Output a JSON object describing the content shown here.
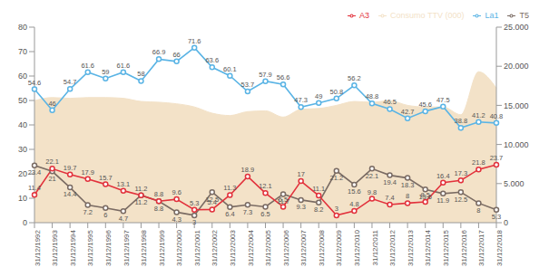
{
  "chart_data": {
    "type": "line",
    "categories": [
      "31/12/1992",
      "31/12/1993",
      "31/12/1994",
      "31/12/1995",
      "31/12/1996",
      "31/12/1997",
      "31/12/1998",
      "31/12/1999",
      "31/12/2000",
      "31/12/2001",
      "31/12/2002",
      "31/12/2003",
      "31/12/2004",
      "31/12/2005",
      "31/12/2006",
      "31/12/2007",
      "31/12/2008",
      "31/12/2009",
      "31/12/2010",
      "31/12/2011",
      "31/12/2012",
      "31/12/2013",
      "31/12/2014",
      "31/12/2015",
      "31/12/2016",
      "31/12/2017",
      "31/12/2018"
    ],
    "series": [
      {
        "name": "Consumo TTV (000)",
        "type": "area",
        "axis": "y2",
        "color": "#f3e2c8",
        "values": [
          15600,
          16000,
          15900,
          16000,
          16000,
          15900,
          15500,
          15400,
          15200,
          14800,
          14000,
          13700,
          14200,
          14300,
          13500,
          14500,
          14600,
          15000,
          15500,
          15400,
          15600,
          15000,
          14800,
          14800,
          13800,
          19300,
          17200
        ]
      },
      {
        "name": "La1",
        "type": "line",
        "color": "#5ab4e5",
        "marker": "circle",
        "data_labels": true,
        "values": [
          54.6,
          46,
          54.7,
          61.6,
          59,
          61.6,
          58,
          66.9,
          66,
          71.6,
          63.6,
          60.1,
          53.7,
          57.9,
          56.6,
          47.3,
          49,
          50.8,
          56.2,
          48.8,
          46.5,
          42.7,
          45.6,
          47.5,
          38.8,
          41.2,
          40.8
        ]
      },
      {
        "name": "T5",
        "type": "line",
        "color": "#7a6b63",
        "marker": "circle",
        "data_labels": true,
        "values": [
          23.4,
          21,
          14.4,
          7.2,
          6,
          4.7,
          11.2,
          8.8,
          4.3,
          3,
          12.5,
          6.4,
          7.3,
          6.5,
          11.7,
          9.3,
          8.2,
          21.2,
          15.6,
          22.1,
          19.4,
          18.3,
          13.6,
          11.9,
          12.5,
          8,
          5.3
        ]
      },
      {
        "name": "A3",
        "type": "line",
        "color": "#e2323c",
        "marker": "circle",
        "data_labels": true,
        "values": [
          11.4,
          22.1,
          19.7,
          17.9,
          15.7,
          13.1,
          11.2,
          8.8,
          9.6,
          5.3,
          5.4,
          11.3,
          18.9,
          12.1,
          6.5,
          17,
          11.1,
          3,
          4.8,
          9.8,
          7.4,
          8,
          8.5,
          16.4,
          17.3,
          21.8,
          23.7
        ]
      }
    ],
    "ylim": [
      0,
      80
    ],
    "yticks": [
      0,
      10,
      20,
      30,
      40,
      50,
      60,
      70,
      80
    ],
    "y2lim": [
      0,
      25000
    ],
    "y2ticks": [
      0,
      {
        "value": 5000,
        "label": "5.000"
      },
      {
        "value": 10000,
        "label": "10.000"
      },
      {
        "value": 15000,
        "label": "15.000"
      },
      {
        "value": 20000,
        "label": "20.000"
      },
      {
        "value": 25000,
        "label": "25.000"
      }
    ],
    "legend": "top",
    "grid": false
  }
}
